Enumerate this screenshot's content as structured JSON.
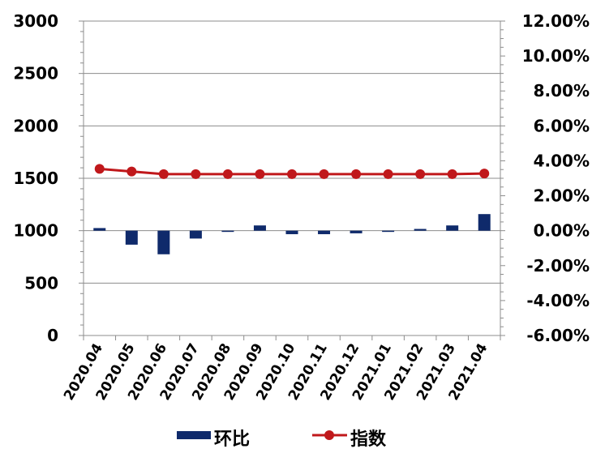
{
  "chart_data": {
    "type": "bar+line",
    "categories": [
      "2020.04",
      "2020.05",
      "2020.06",
      "2020.07",
      "2020.08",
      "2020.09",
      "2020.10",
      "2020.11",
      "2020.12",
      "2021.01",
      "2021.02",
      "2021.03",
      "2021.04"
    ],
    "series": [
      {
        "name": "环比",
        "type": "bar",
        "axis": "right",
        "values": [
          0.15,
          -0.8,
          -1.35,
          -0.45,
          -0.03,
          0.3,
          -0.2,
          -0.2,
          -0.15,
          0.0,
          0.1,
          0.3,
          0.95
        ],
        "color": "#0f2a6b"
      },
      {
        "name": "指数",
        "type": "line",
        "axis": "left",
        "values": [
          1590,
          1565,
          1540,
          1540,
          1540,
          1540,
          1540,
          1540,
          1540,
          1540,
          1540,
          1540,
          1545
        ],
        "color": "#c0181b"
      }
    ],
    "left_axis": {
      "range": [
        0,
        3000
      ],
      "ticks": [
        0,
        500,
        1000,
        1500,
        2000,
        2500,
        3000
      ],
      "tick_labels": [
        "0",
        "500",
        "1000",
        "1500",
        "2000",
        "2500",
        "3000"
      ]
    },
    "right_axis": {
      "range": [
        -6,
        12
      ],
      "unit": "%",
      "ticks": [
        -6,
        -4,
        -2,
        0,
        2,
        4,
        6,
        8,
        10,
        12
      ],
      "tick_labels": [
        "-6.00%",
        "-4.00%",
        "-2.00%",
        "0.00%",
        "2.00%",
        "4.00%",
        "6.00%",
        "8.00%",
        "10.00%",
        "12.00%"
      ]
    },
    "grid": true,
    "legend_position": "bottom",
    "legend": [
      "环比",
      "指数"
    ]
  }
}
